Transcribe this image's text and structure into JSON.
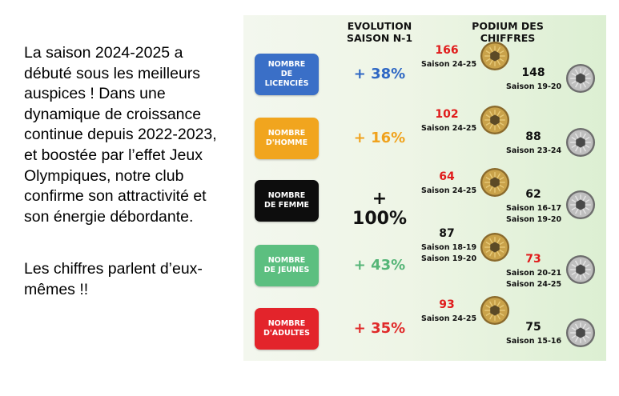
{
  "intro": {
    "paragraph1": "La saison 2024-2025 a débuté sous les meilleurs auspices ! Dans une dynamique de croissance continue depuis 2022-2023, et boostée par l’effet Jeux Olympiques, notre club confirme son attractivité et son énergie débordante.",
    "paragraph2": "Les chiffres parlent d’eux-mêmes !!"
  },
  "headers": {
    "evolution_line1": "EVOLUTION",
    "evolution_line2": "SAISON N-1",
    "podium_line1": "PODIUM DES",
    "podium_line2": "CHIFFRES"
  },
  "rows": [
    {
      "category_line1": "NOMBRE",
      "category_line2": "DE",
      "category_line3": "LICENCIÉS",
      "color": "#3a6fc7",
      "evolution": "+ 38%",
      "evolution_color": "#2e67c4",
      "gold_value": "166",
      "gold_value_color": "#e01b1b",
      "gold_season1": "Saison 24-25",
      "gold_season2": "",
      "silver_value": "148",
      "silver_value_color": "#111111",
      "silver_season1": "Saison 19-20",
      "silver_season2": ""
    },
    {
      "category_line1": "NOMBRE",
      "category_line2": "D'HOMME",
      "category_line3": "",
      "color": "#f1a51e",
      "evolution": "+ 16%",
      "evolution_color": "#f0a21d",
      "gold_value": "102",
      "gold_value_color": "#e01b1b",
      "gold_season1": "Saison 24-25",
      "gold_season2": "",
      "silver_value": "88",
      "silver_value_color": "#111111",
      "silver_season1": "Saison 23-24",
      "silver_season2": ""
    },
    {
      "category_line1": "NOMBRE",
      "category_line2": "DE FEMME",
      "category_line3": "",
      "color": "#0d0d0d",
      "evolution": "+ 100%",
      "evolution_color": "#111111",
      "gold_value": "64",
      "gold_value_color": "#e01b1b",
      "gold_season1": "Saison 24-25",
      "gold_season2": "",
      "silver_value": "62",
      "silver_value_color": "#111111",
      "silver_season1": "Saison 16-17",
      "silver_season2": "Saison 19-20"
    },
    {
      "category_line1": "NOMBRE",
      "category_line2": "DE JEUNES",
      "category_line3": "",
      "color": "#5cbf80",
      "evolution": "+ 43%",
      "evolution_color": "#55b577",
      "gold_value": "87",
      "gold_value_color": "#111111",
      "gold_season1": "Saison 18-19",
      "gold_season2": "Saison 19-20",
      "silver_value": "73",
      "silver_value_color": "#e01b1b",
      "silver_season1": "Saison 20-21",
      "silver_season2": "Saison 24-25"
    },
    {
      "category_line1": "NOMBRE",
      "category_line2": "D'ADULTES",
      "category_line3": "",
      "color": "#e3242b",
      "evolution": "+ 35%",
      "evolution_color": "#e02a2a",
      "gold_value": "93",
      "gold_value_color": "#e01b1b",
      "gold_season1": "Saison 24-25",
      "gold_season2": "",
      "silver_value": "75",
      "silver_value_color": "#111111",
      "silver_season1": "Saison 15-16",
      "silver_season2": ""
    }
  ]
}
